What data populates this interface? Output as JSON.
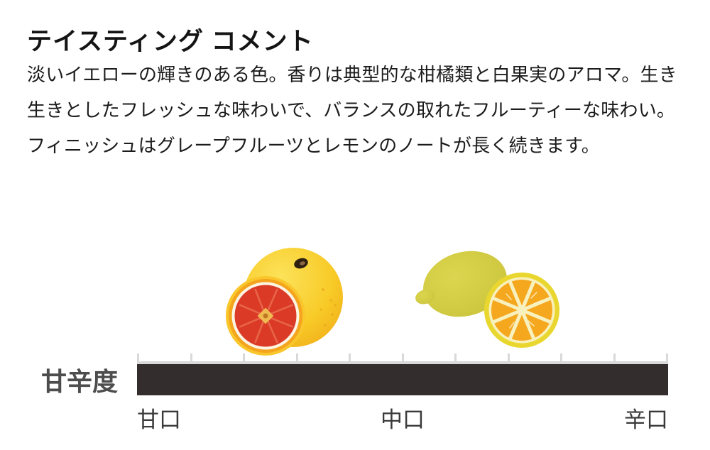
{
  "section": {
    "title": "テイスティング コメント",
    "description_lines": [
      "淡いイエローの輝きのある色。香りは典型的な柑橘類と白果実のアロマ。生き",
      "生きとしたフレッシュな味わいで、バランスの取れたフルーティーな味わい。",
      "フィニッシュはグレープフルーツとレモンのノートが長く続きます。"
    ]
  },
  "icons": {
    "grapefruit": "grapefruit-illustration",
    "lemon": "lemon-illustration"
  },
  "scale": {
    "label": "甘辛度",
    "min_label": "甘口",
    "mid_label": "中口",
    "max_label": "辛口",
    "tick_count": 11,
    "bar_color": "#332D2D",
    "tick_color": "#D9D9D9",
    "label_color": "#4D4D4D"
  }
}
